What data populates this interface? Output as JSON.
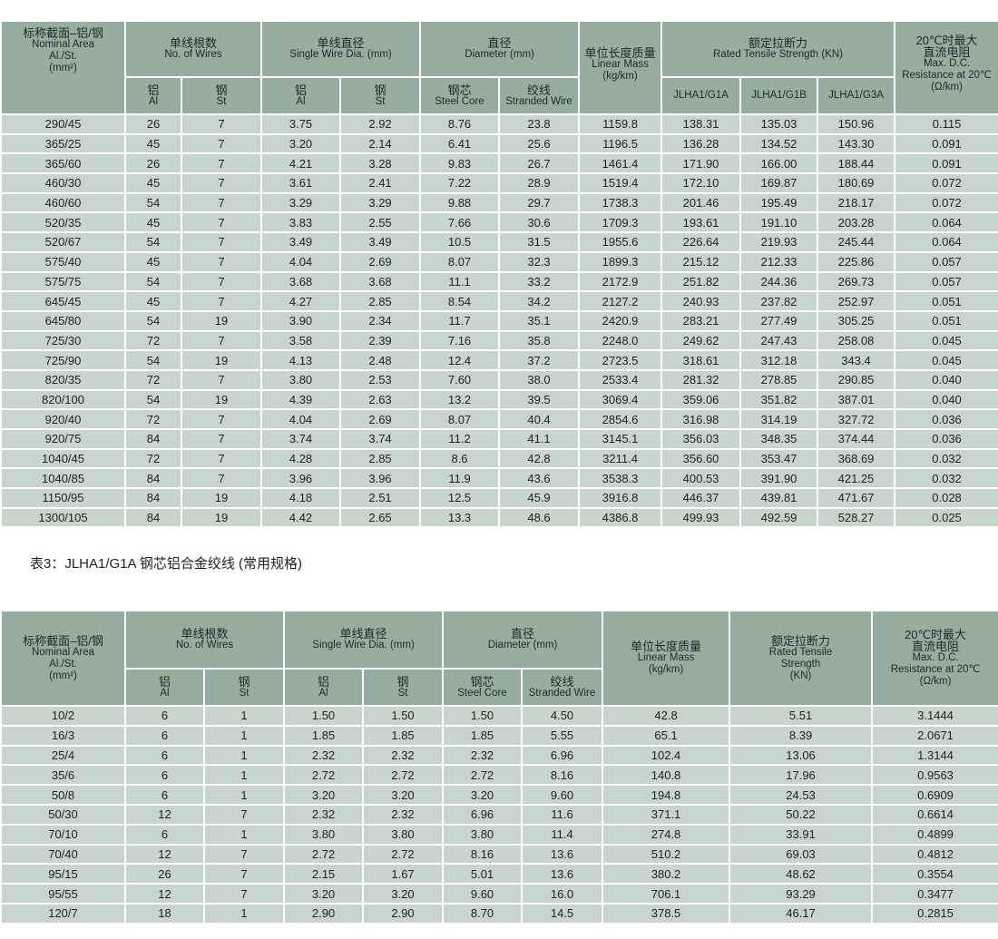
{
  "table1": {
    "header": {
      "area_cn": "标称截面–铝/钢",
      "area_en1": "Nominal Area",
      "area_en2": "Al./St.",
      "area_unit": "(mm²)",
      "wires_cn": "单线根数",
      "wires_en": "No. of Wires",
      "swd_cn": "单线直径",
      "swd_en": "Single Wire Dia. (mm)",
      "dia_cn": "直径",
      "dia_en": "Diameter (mm)",
      "mass_cn": "单位长度质量",
      "mass_en": "Linear Mass",
      "mass_unit": "(kg/km)",
      "rts_cn": "额定拉断力",
      "rts_en": "Rated Tensile Strength (KN)",
      "res_cn1": "20℃时最大",
      "res_cn2": "直流电阻",
      "res_en1": "Max. D.C.",
      "res_en2": "Resistance at 20℃",
      "res_unit": "(Ω/km)",
      "al_cn": "铝",
      "al_en": "Al",
      "st_cn": "钢",
      "st_en": "St",
      "core_cn": "钢芯",
      "core_en": "Steel Core",
      "strand_cn": "绞线",
      "strand_en": "Stranded Wire",
      "g1a": "JLHA1/G1A",
      "g1b": "JLHA1/G1B",
      "g3a": "JLHA1/G3A"
    },
    "rows": [
      [
        "290/45",
        "26",
        "7",
        "3.75",
        "2.92",
        "8.76",
        "23.8",
        "1159.8",
        "138.31",
        "135.03",
        "150.96",
        "0.115"
      ],
      [
        "365/25",
        "45",
        "7",
        "3.20",
        "2.14",
        "6.41",
        "25.6",
        "1196.5",
        "136.28",
        "134.52",
        "143.30",
        "0.091"
      ],
      [
        "365/60",
        "26",
        "7",
        "4.21",
        "3.28",
        "9.83",
        "26.7",
        "1461.4",
        "171.90",
        "166.00",
        "188.44",
        "0.091"
      ],
      [
        "460/30",
        "45",
        "7",
        "3.61",
        "2.41",
        "7.22",
        "28.9",
        "1519.4",
        "172.10",
        "169.87",
        "180.69",
        "0.072"
      ],
      [
        "460/60",
        "54",
        "7",
        "3.29",
        "3.29",
        "9.88",
        "29.7",
        "1738.3",
        "201.46",
        "195.49",
        "218.17",
        "0.072"
      ],
      [
        "520/35",
        "45",
        "7",
        "3.83",
        "2.55",
        "7.66",
        "30.6",
        "1709.3",
        "193.61",
        "191.10",
        "203.28",
        "0.064"
      ],
      [
        "520/67",
        "54",
        "7",
        "3.49",
        "3.49",
        "10.5",
        "31.5",
        "1955.6",
        "226.64",
        "219.93",
        "245.44",
        "0.064"
      ],
      [
        "575/40",
        "45",
        "7",
        "4.04",
        "2.69",
        "8.07",
        "32.3",
        "1899.3",
        "215.12",
        "212.33",
        "225.86",
        "0.057"
      ],
      [
        "575/75",
        "54",
        "7",
        "3.68",
        "3.68",
        "11.1",
        "33.2",
        "2172.9",
        "251.82",
        "244.36",
        "269.73",
        "0.057"
      ],
      [
        "645/45",
        "45",
        "7",
        "4.27",
        "2.85",
        "8.54",
        "34.2",
        "2127.2",
        "240.93",
        "237.82",
        "252.97",
        "0.051"
      ],
      [
        "645/80",
        "54",
        "19",
        "3.90",
        "2.34",
        "11.7",
        "35.1",
        "2420.9",
        "283.21",
        "277.49",
        "305.25",
        "0.051"
      ],
      [
        "725/30",
        "72",
        "7",
        "3.58",
        "2.39",
        "7.16",
        "35.8",
        "2248.0",
        "249.62",
        "247.43",
        "258.08",
        "0.045"
      ],
      [
        "725/90",
        "54",
        "19",
        "4.13",
        "2.48",
        "12.4",
        "37.2",
        "2723.5",
        "318.61",
        "312.18",
        "343.4",
        "0.045"
      ],
      [
        "820/35",
        "72",
        "7",
        "3.80",
        "2.53",
        "7.60",
        "38.0",
        "2533.4",
        "281.32",
        "278.85",
        "290.85",
        "0.040"
      ],
      [
        "820/100",
        "54",
        "19",
        "4.39",
        "2.63",
        "13.2",
        "39.5",
        "3069.4",
        "359.06",
        "351.82",
        "387.01",
        "0.040"
      ],
      [
        "920/40",
        "72",
        "7",
        "4.04",
        "2.69",
        "8.07",
        "40.4",
        "2854.6",
        "316.98",
        "314.19",
        "327.72",
        "0.036"
      ],
      [
        "920/75",
        "84",
        "7",
        "3.74",
        "3.74",
        "11.2",
        "41.1",
        "3145.1",
        "356.03",
        "348.35",
        "374.44",
        "0.036"
      ],
      [
        "1040/45",
        "72",
        "7",
        "4.28",
        "2.85",
        "8.6",
        "42.8",
        "3211.4",
        "356.60",
        "353.47",
        "368.69",
        "0.032"
      ],
      [
        "1040/85",
        "84",
        "7",
        "3.96",
        "3.96",
        "11.9",
        "43.6",
        "3538.3",
        "400.53",
        "391.90",
        "421.25",
        "0.032"
      ],
      [
        "1150/95",
        "84",
        "19",
        "4.18",
        "2.51",
        "12.5",
        "45.9",
        "3916.8",
        "446.37",
        "439.81",
        "471.67",
        "0.028"
      ],
      [
        "1300/105",
        "84",
        "19",
        "4.42",
        "2.65",
        "13.3",
        "48.6",
        "4386.8",
        "499.93",
        "492.59",
        "528.27",
        "0.025"
      ]
    ]
  },
  "table2_title": "表3：JLHA1/G1A 钢芯铝合金绞线 (常用规格)",
  "table2": {
    "header": {
      "rts_cn": "额定拉断力",
      "rts_en1": "Rated Tensile",
      "rts_en2": "Strength",
      "rts_unit": "(KN)"
    },
    "rows": [
      [
        "10/2",
        "6",
        "1",
        "1.50",
        "1.50",
        "1.50",
        "4.50",
        "42.8",
        "5.51",
        "3.1444"
      ],
      [
        "16/3",
        "6",
        "1",
        "1.85",
        "1.85",
        "1.85",
        "5.55",
        "65.1",
        "8.39",
        "2.0671"
      ],
      [
        "25/4",
        "6",
        "1",
        "2.32",
        "2.32",
        "2.32",
        "6.96",
        "102.4",
        "13.06",
        "1.3144"
      ],
      [
        "35/6",
        "6",
        "1",
        "2.72",
        "2.72",
        "2.72",
        "8.16",
        "140.8",
        "17.96",
        "0.9563"
      ],
      [
        "50/8",
        "6",
        "1",
        "3.20",
        "3.20",
        "3.20",
        "9.60",
        "194.8",
        "24.53",
        "0.6909"
      ],
      [
        "50/30",
        "12",
        "7",
        "2.32",
        "2.32",
        "6.96",
        "11.6",
        "371.1",
        "50.22",
        "0.6614"
      ],
      [
        "70/10",
        "6",
        "1",
        "3.80",
        "3.80",
        "3.80",
        "11.4",
        "274.8",
        "33.91",
        "0.4899"
      ],
      [
        "70/40",
        "12",
        "7",
        "2.72",
        "2.72",
        "8.16",
        "13.6",
        "510.2",
        "69.03",
        "0.4812"
      ],
      [
        "95/15",
        "26",
        "7",
        "2.15",
        "1.67",
        "5.01",
        "13.6",
        "380.2",
        "48.62",
        "0.3554"
      ],
      [
        "95/55",
        "12",
        "7",
        "3.20",
        "3.20",
        "9.60",
        "16.0",
        "706.1",
        "93.29",
        "0.3477"
      ],
      [
        "120/7",
        "18",
        "1",
        "2.90",
        "2.90",
        "8.70",
        "14.5",
        "378.5",
        "46.17",
        "0.2815"
      ]
    ]
  },
  "colors": {
    "header_bg": "#97ae9e",
    "cell_bg": "#c8d5cb",
    "border": "#ffffff"
  }
}
